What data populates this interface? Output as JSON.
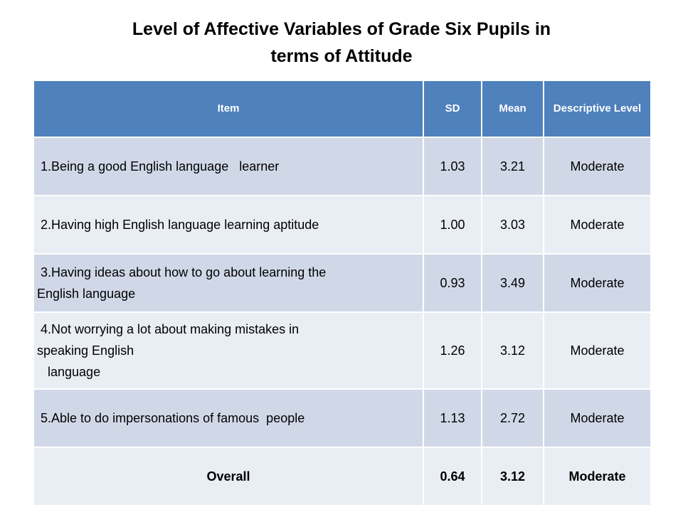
{
  "title": {
    "line1": "Level of Affective Variables of Grade Six Pupils in",
    "line2": "terms of Attitude"
  },
  "table": {
    "headers": [
      "Item",
      "SD",
      "Mean",
      "Descriptive Level"
    ],
    "rows": [
      {
        "item_lines": [
          " 1.Being a good English language   learner"
        ],
        "sd": "1.03",
        "mean": "3.21",
        "level": "Moderate"
      },
      {
        "item_lines": [
          " 2.Having high English language learning aptitude"
        ],
        "sd": "1.00",
        "mean": "3.03",
        "level": "Moderate"
      },
      {
        "item_lines": [
          " 3.Having ideas about how to go about learning the",
          "English language"
        ],
        "sd": "0.93",
        "mean": "3.49",
        "level": "Moderate"
      },
      {
        "item_lines": [
          " 4.Not worrying a lot about making mistakes in",
          "speaking English",
          "   language"
        ],
        "sd": "1.26",
        "mean": "3.12",
        "level": "Moderate"
      },
      {
        "item_lines": [
          " 5.Able to do impersonations of famous  people"
        ],
        "sd": "1.13",
        "mean": "2.72",
        "level": "Moderate"
      }
    ],
    "overall": {
      "item": "Overall",
      "sd": "0.64",
      "mean": "3.12",
      "level": "Moderate"
    }
  }
}
